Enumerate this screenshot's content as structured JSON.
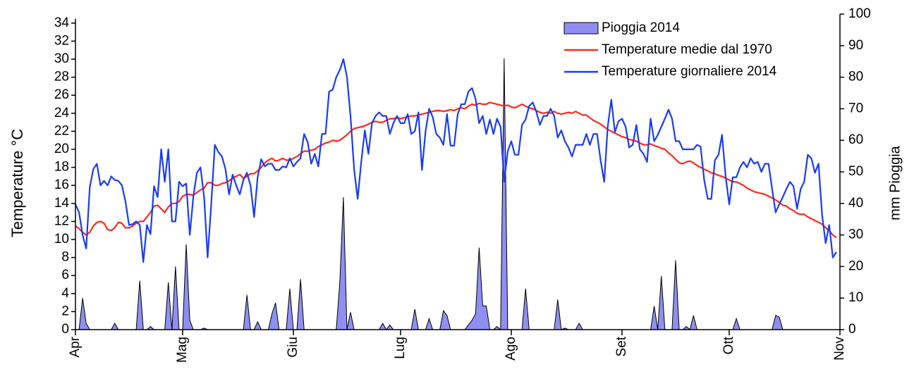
{
  "chart_data": {
    "type": "line",
    "y_label": "Temperature °C",
    "y2_label": "mm Pioggia",
    "xlim": [
      0,
      214
    ],
    "xticks": [
      {
        "value": 0,
        "label": "Apr"
      },
      {
        "value": 30,
        "label": "Mag"
      },
      {
        "value": 61,
        "label": "Giu"
      },
      {
        "value": 91,
        "label": "Lug"
      },
      {
        "value": 122,
        "label": "Ago"
      },
      {
        "value": 153,
        "label": "Set"
      },
      {
        "value": 183,
        "label": "Ott"
      },
      {
        "value": 214,
        "label": "Nov"
      }
    ],
    "ylim": [
      0,
      35
    ],
    "yticks": [
      0,
      2,
      4,
      6,
      8,
      10,
      12,
      14,
      16,
      18,
      20,
      22,
      24,
      26,
      28,
      30,
      32,
      34
    ],
    "y2lim": [
      0,
      100
    ],
    "y2ticks": [
      0,
      10,
      20,
      30,
      40,
      50,
      60,
      70,
      80,
      90,
      100
    ],
    "legend": "upper right",
    "x": [
      0,
      1,
      2,
      3,
      4,
      5,
      6,
      7,
      8,
      9,
      10,
      11,
      12,
      13,
      14,
      15,
      16,
      17,
      18,
      19,
      20,
      21,
      22,
      23,
      24,
      25,
      26,
      27,
      28,
      29,
      30,
      31,
      32,
      33,
      34,
      35,
      36,
      37,
      38,
      39,
      40,
      41,
      42,
      43,
      44,
      45,
      46,
      47,
      48,
      49,
      50,
      51,
      52,
      53,
      54,
      55,
      56,
      57,
      58,
      59,
      60,
      61,
      62,
      63,
      64,
      65,
      66,
      67,
      68,
      69,
      70,
      71,
      72,
      73,
      74,
      75,
      76,
      77,
      78,
      79,
      80,
      81,
      82,
      83,
      84,
      85,
      86,
      87,
      88,
      89,
      90,
      91,
      92,
      93,
      94,
      95,
      96,
      97,
      98,
      99,
      100,
      101,
      102,
      103,
      104,
      105,
      106,
      107,
      108,
      109,
      110,
      111,
      112,
      113,
      114,
      115,
      116,
      117,
      118,
      119,
      120,
      121,
      122,
      123,
      124,
      125,
      126,
      127,
      128,
      129,
      130,
      131,
      132,
      133,
      134,
      135,
      136,
      137,
      138,
      139,
      140,
      141,
      142,
      143,
      144,
      145,
      146,
      147,
      148,
      149,
      150,
      151,
      152,
      153,
      154,
      155,
      156,
      157,
      158,
      159,
      160,
      161,
      162,
      163,
      164,
      165,
      166,
      167,
      168,
      169,
      170,
      171,
      172,
      173,
      174,
      175,
      176,
      177,
      178,
      179,
      180,
      181,
      182,
      183,
      184,
      185,
      186,
      187,
      188,
      189,
      190,
      191,
      192,
      193,
      194,
      195,
      196,
      197,
      198,
      199,
      200,
      201,
      202,
      203,
      204,
      205,
      206,
      207,
      208,
      209,
      210,
      211,
      212,
      213
    ],
    "series": [
      {
        "name": "Pioggia 2014",
        "type": "area",
        "axis": "y2",
        "color": "#8f8ff2",
        "values": [
          0,
          0,
          10,
          2,
          0,
          0,
          0,
          0,
          0,
          0,
          0,
          2,
          0,
          0,
          0,
          0,
          0,
          0,
          15.5,
          0,
          0,
          1,
          0,
          0,
          0,
          0,
          15,
          0,
          20,
          0,
          0,
          27,
          3,
          0,
          0,
          0,
          0.5,
          0,
          0,
          0,
          0,
          0,
          0,
          0,
          0,
          0,
          0,
          0,
          11,
          0,
          0,
          2.5,
          0,
          0,
          0,
          5,
          8.5,
          0,
          0,
          0,
          13,
          0,
          0,
          16,
          0,
          0,
          0,
          0,
          0,
          0,
          0,
          0,
          0,
          0,
          15,
          42,
          0,
          5.5,
          0,
          0,
          0,
          0,
          0,
          0,
          0,
          0,
          2,
          0,
          1.5,
          0,
          0,
          0,
          0,
          0,
          0,
          6.5,
          0,
          0,
          0,
          3.5,
          0,
          0,
          0,
          6,
          4.5,
          0,
          0,
          0,
          0,
          0,
          1.5,
          3,
          5,
          26,
          7.5,
          7.5,
          0,
          0,
          1,
          0,
          86,
          0,
          0,
          0,
          0,
          0,
          13,
          0,
          0,
          0,
          0,
          0,
          0,
          0,
          0,
          9.5,
          0,
          0.5,
          0,
          0,
          0,
          2,
          0,
          0,
          0,
          0,
          0,
          0,
          0,
          0,
          0,
          0,
          0,
          0,
          0,
          0,
          0,
          0,
          0,
          0,
          0,
          0,
          7.5,
          0,
          17,
          0,
          0,
          0,
          22,
          0,
          0,
          1,
          0,
          4.5,
          0,
          0,
          0,
          0,
          0,
          0,
          0,
          0,
          0,
          0,
          0,
          3.5,
          0,
          0,
          0,
          0,
          0,
          0,
          0,
          0,
          0,
          0,
          4.5,
          4,
          0,
          0,
          0,
          0,
          0,
          0,
          0,
          0,
          0,
          0,
          0,
          0,
          0,
          0,
          0,
          0
        ]
      },
      {
        "name": "Temperature medie dal 1970",
        "type": "line",
        "color": "#ff2a1a",
        "values": [
          11.5,
          11.2,
          10.8,
          10.5,
          10.8,
          11.5,
          11.9,
          12.0,
          11.8,
          11.1,
          11.0,
          11.3,
          11.9,
          11.8,
          11.3,
          11.3,
          11.5,
          11.8,
          12.0,
          12.0,
          12.5,
          13.0,
          13.7,
          13.8,
          13.4,
          13.0,
          13.6,
          14.0,
          14.0,
          14.2,
          14.8,
          15.0,
          15.0,
          14.9,
          15.2,
          15.5,
          15.7,
          16.3,
          16.3,
          16.0,
          16.0,
          16.2,
          16.3,
          16.5,
          16.8,
          17.0,
          17.2,
          16.8,
          17.0,
          17.3,
          17.3,
          17.6,
          18.0,
          18.5,
          18.8,
          19.0,
          18.7,
          18.8,
          19.0,
          18.8,
          18.8,
          19.0,
          19.2,
          19.5,
          19.8,
          19.8,
          19.9,
          20.0,
          20.3,
          20.5,
          20.7,
          20.8,
          21.0,
          20.9,
          21.0,
          21.3,
          21.6,
          22.0,
          22.3,
          22.4,
          22.5,
          22.6,
          22.8,
          23.0,
          23.1,
          23.0,
          23.0,
          23.2,
          23.4,
          23.4,
          23.5,
          23.4,
          23.5,
          23.6,
          23.7,
          23.7,
          23.8,
          23.9,
          24.0,
          24.1,
          24.2,
          24.3,
          24.3,
          24.2,
          24.3,
          24.4,
          24.3,
          24.5,
          24.6,
          24.5,
          24.8,
          25.0,
          24.9,
          25.1,
          25.0,
          25.0,
          25.2,
          25.1,
          25.0,
          24.9,
          24.8,
          24.9,
          24.7,
          24.6,
          24.8,
          25.0,
          24.8,
          24.6,
          24.5,
          24.3,
          24.1,
          24.0,
          24.1,
          24.0,
          24.2,
          24.0,
          23.9,
          24.0,
          24.1,
          24.0,
          24.2,
          24.0,
          23.8,
          23.8,
          23.5,
          23.2,
          23.0,
          22.8,
          22.5,
          22.2,
          22.0,
          21.8,
          21.6,
          21.4,
          21.3,
          21.1,
          21.0,
          20.9,
          20.7,
          20.5,
          20.5,
          20.6,
          20.4,
          20.3,
          20.1,
          20.0,
          19.6,
          19.3,
          18.9,
          18.5,
          18.4,
          18.6,
          18.7,
          18.5,
          18.2,
          18.0,
          17.8,
          17.6,
          17.4,
          17.3,
          17.1,
          17.0,
          16.8,
          16.6,
          16.4,
          16.4,
          16.2,
          16.0,
          15.7,
          15.5,
          15.3,
          15.2,
          15.1,
          15.0,
          14.8,
          14.6,
          14.4,
          14.1,
          13.8,
          13.7,
          13.4,
          13.2,
          12.9,
          12.8,
          12.8,
          12.5,
          12.3,
          12.1,
          11.9,
          11.7,
          11.3,
          11.0,
          10.5,
          10.2
        ]
      },
      {
        "name": "Temperature giornaliere 2014",
        "type": "line",
        "color": "#1a3cf5",
        "values": [
          13.9,
          13.0,
          10.5,
          9.0,
          15.8,
          17.8,
          18.4,
          16.0,
          16.5,
          16.0,
          17.0,
          16.6,
          16.5,
          16.0,
          14.2,
          11.6,
          11.7,
          12.0,
          11.6,
          7.5,
          11.6,
          10.6,
          15.9,
          14.7,
          20.0,
          16.4,
          20.0,
          12.0,
          12.0,
          16.4,
          15.9,
          16.2,
          10.5,
          14.8,
          17.4,
          18.0,
          14.7,
          8.0,
          13.9,
          20.5,
          19.7,
          19.2,
          17.8,
          15.0,
          17.2,
          16.0,
          15.0,
          16.6,
          17.4,
          16.0,
          12.5,
          16.9,
          18.9,
          18.1,
          18.4,
          18.4,
          17.7,
          17.7,
          18.1,
          18.0,
          19.0,
          18.1,
          18.6,
          19.0,
          21.7,
          20.8,
          18.4,
          19.5,
          18.1,
          21.7,
          21.7,
          26.4,
          26.6,
          28.0,
          28.8,
          30.0,
          28.0,
          23.7,
          17.8,
          14.5,
          18.6,
          22.1,
          19.5,
          22.9,
          23.7,
          24.1,
          23.7,
          23.7,
          21.7,
          22.9,
          23.7,
          22.9,
          22.9,
          23.9,
          21.7,
          22.0,
          24.1,
          17.7,
          22.0,
          24.5,
          23.6,
          21.7,
          21.3,
          20.5,
          23.9,
          20.4,
          20.4,
          23.9,
          25.0,
          25.0,
          26.4,
          26.8,
          25.6,
          22.9,
          23.7,
          21.7,
          23.3,
          21.7,
          23.4,
          22.5,
          16.4,
          19.8,
          20.9,
          19.4,
          19.4,
          22.7,
          23.3,
          24.8,
          25.2,
          24.2,
          22.7,
          23.7,
          23.7,
          24.5,
          23.7,
          21.3,
          22.1,
          20.9,
          20.2,
          19.2,
          20.5,
          20.5,
          20.5,
          21.7,
          20.5,
          21.7,
          21.7,
          18.8,
          16.4,
          22.5,
          25.5,
          21.9,
          23.1,
          23.4,
          22.5,
          20.2,
          20.5,
          22.7,
          20.0,
          19.5,
          18.6,
          23.4,
          20.9,
          21.6,
          22.5,
          23.4,
          24.4,
          23.4,
          20.9,
          20.9,
          20.0,
          20.0,
          20.0,
          20.0,
          20.5,
          20.3,
          16.6,
          14.5,
          14.5,
          18.8,
          19.4,
          21.6,
          17.0,
          13.9,
          16.9,
          16.9,
          18.0,
          18.6,
          18.0,
          19.0,
          18.4,
          18.6,
          17.5,
          18.4,
          18.4,
          15.6,
          13.0,
          13.9,
          14.7,
          15.6,
          16.4,
          15.9,
          13.4,
          15.6,
          16.4,
          19.4,
          19.0,
          17.4,
          18.4,
          12.7,
          9.6,
          11.6,
          8.0,
          8.6
        ]
      }
    ]
  }
}
